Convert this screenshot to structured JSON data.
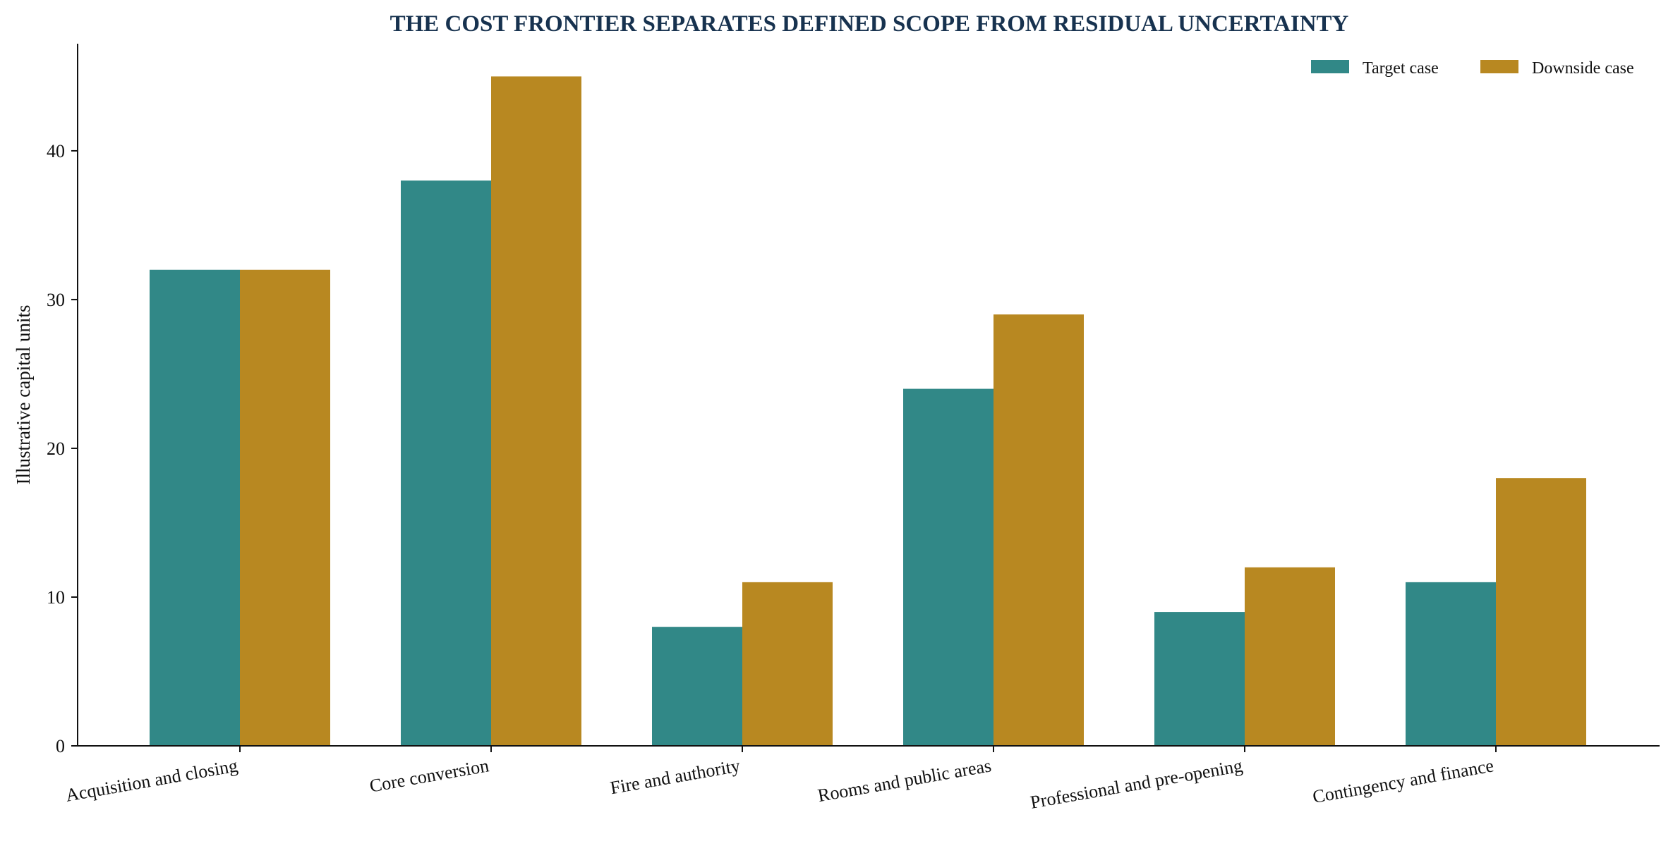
{
  "chart_data": {
    "type": "bar",
    "title": "THE COST FRONTIER SEPARATES DEFINED SCOPE FROM RESIDUAL UNCERTAINTY",
    "xlabel": "",
    "ylabel": "Illustrative capital units",
    "categories": [
      "Acquisition and closing",
      "Core conversion",
      "Fire and authority",
      "Rooms and public areas",
      "Professional and pre-opening",
      "Contingency and finance"
    ],
    "series": [
      {
        "name": "Target case",
        "color": "#318887",
        "values": [
          32,
          38,
          8,
          24,
          9,
          11
        ]
      },
      {
        "name": "Downside case",
        "color": "#b88821",
        "values": [
          32,
          45,
          11,
          29,
          12,
          18
        ]
      }
    ],
    "ylim": [
      0,
      47.2
    ],
    "yticks": [
      0,
      10,
      20,
      30,
      40
    ],
    "grid": false,
    "legend_position": "top-right"
  }
}
